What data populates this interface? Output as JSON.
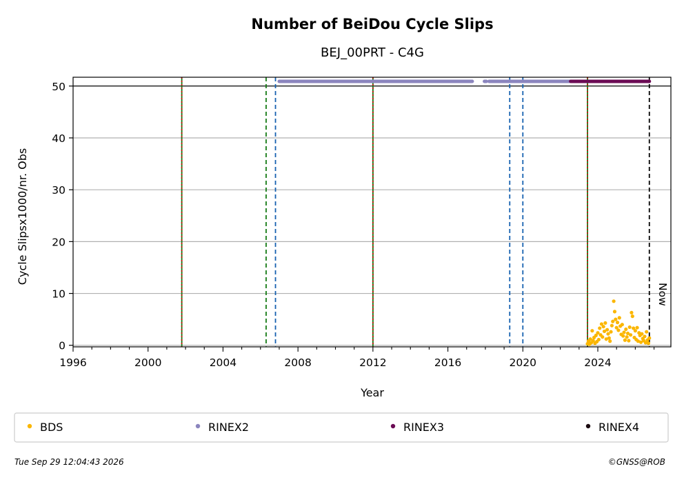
{
  "chart_data": {
    "type": "scatter",
    "title": "Number of BeiDou Cycle Slips",
    "subtitle": "BEJ_00PRT - C4G",
    "xlabel": "Year",
    "ylabel": "Cycle Slipsx1000/nr. Obs",
    "xlim": [
      1996,
      2027.9
    ],
    "ylim": [
      -0.3,
      51.7
    ],
    "x_ticks": [
      "1996",
      "2000",
      "2004",
      "2008",
      "2012",
      "2016",
      "2020",
      "2024"
    ],
    "y_ticks": [
      "0",
      "10",
      "20",
      "30",
      "40",
      "50"
    ],
    "grid": "y",
    "reference_line_y": 50,
    "vertical_lines": [
      {
        "x": 2001.8,
        "style": "green-red-dotted"
      },
      {
        "x": 2006.3,
        "style": "green-dashed"
      },
      {
        "x": 2006.8,
        "style": "blue-dashed"
      },
      {
        "x": 2012.0,
        "style": "green-red-dotted"
      },
      {
        "x": 2019.3,
        "style": "blue-dashed"
      },
      {
        "x": 2020.0,
        "style": "blue-dashed"
      },
      {
        "x": 2023.45,
        "style": "green-red-dotted"
      },
      {
        "x": 2026.75,
        "style": "black-dashed",
        "label": "Now"
      }
    ],
    "rinex_bars": [
      {
        "series": "RINEX2",
        "x_start": 2007.0,
        "x_end": 2017.3,
        "y": 50.9
      },
      {
        "series": "RINEX2",
        "x_start": 2017.95,
        "x_end": 2018.05,
        "y": 50.9
      },
      {
        "series": "RINEX2",
        "x_start": 2018.2,
        "x_end": 2022.5,
        "y": 50.9
      },
      {
        "series": "RINEX3",
        "x_start": 2022.55,
        "x_end": 2026.75,
        "y": 50.9
      }
    ],
    "bds_points": [
      [
        2023.45,
        0.3
      ],
      [
        2023.5,
        0.8
      ],
      [
        2023.55,
        0.2
      ],
      [
        2023.6,
        1.2
      ],
      [
        2023.65,
        0.5
      ],
      [
        2023.7,
        2.8
      ],
      [
        2023.75,
        0.9
      ],
      [
        2023.8,
        1.5
      ],
      [
        2023.85,
        0.4
      ],
      [
        2023.9,
        1.9
      ],
      [
        2023.95,
        0.7
      ],
      [
        2024.0,
        2.4
      ],
      [
        2024.05,
        1.1
      ],
      [
        2024.1,
        3.3
      ],
      [
        2024.15,
        2.0
      ],
      [
        2024.2,
        4.1
      ],
      [
        2024.25,
        1.6
      ],
      [
        2024.3,
        3.6
      ],
      [
        2024.35,
        2.7
      ],
      [
        2024.4,
        4.3
      ],
      [
        2024.45,
        1.2
      ],
      [
        2024.5,
        3.0
      ],
      [
        2024.55,
        2.2
      ],
      [
        2024.6,
        1.4
      ],
      [
        2024.65,
        0.8
      ],
      [
        2024.7,
        2.6
      ],
      [
        2024.75,
        3.8
      ],
      [
        2024.8,
        4.6
      ],
      [
        2024.85,
        8.5
      ],
      [
        2024.9,
        6.5
      ],
      [
        2024.95,
        5.0
      ],
      [
        2025.0,
        3.4
      ],
      [
        2025.05,
        4.4
      ],
      [
        2025.1,
        2.9
      ],
      [
        2025.15,
        5.3
      ],
      [
        2025.2,
        3.7
      ],
      [
        2025.25,
        2.1
      ],
      [
        2025.3,
        4.0
      ],
      [
        2025.35,
        1.8
      ],
      [
        2025.4,
        2.5
      ],
      [
        2025.45,
        1.0
      ],
      [
        2025.5,
        3.1
      ],
      [
        2025.55,
        1.6
      ],
      [
        2025.6,
        2.3
      ],
      [
        2025.65,
        0.9
      ],
      [
        2025.7,
        3.5
      ],
      [
        2025.75,
        2.0
      ],
      [
        2025.8,
        6.3
      ],
      [
        2025.85,
        5.6
      ],
      [
        2025.9,
        3.3
      ],
      [
        2025.95,
        1.5
      ],
      [
        2026.0,
        2.8
      ],
      [
        2026.05,
        1.1
      ],
      [
        2026.1,
        3.4
      ],
      [
        2026.15,
        0.8
      ],
      [
        2026.2,
        2.4
      ],
      [
        2026.25,
        1.9
      ],
      [
        2026.3,
        0.6
      ],
      [
        2026.35,
        2.2
      ],
      [
        2026.4,
        1.3
      ],
      [
        2026.45,
        0.9
      ],
      [
        2026.5,
        1.7
      ],
      [
        2026.55,
        0.5
      ],
      [
        2026.6,
        2.6
      ],
      [
        2026.65,
        1.0
      ],
      [
        2026.7,
        0.4
      ],
      [
        2026.75,
        1.4
      ]
    ],
    "legend": {
      "placement": "bottom",
      "entries": [
        {
          "label": "BDS",
          "color": "#fbb600"
        },
        {
          "label": "RINEX2",
          "color": "#8b85be"
        },
        {
          "label": "RINEX3",
          "color": "#6b0b54"
        },
        {
          "label": "RINEX4",
          "color": "#1a0a10"
        }
      ]
    },
    "colors": {
      "bds": "#fbb600",
      "rinex2": "#8b85be",
      "rinex3": "#6b0b54",
      "green": "#137a13",
      "red": "#d40000",
      "blue": "#1560b0",
      "grid": "#b0b0b0"
    }
  },
  "footer": {
    "timestamp": "Tue Sep 29 12:04:43 2026",
    "credit": "©GNSS@ROB"
  }
}
